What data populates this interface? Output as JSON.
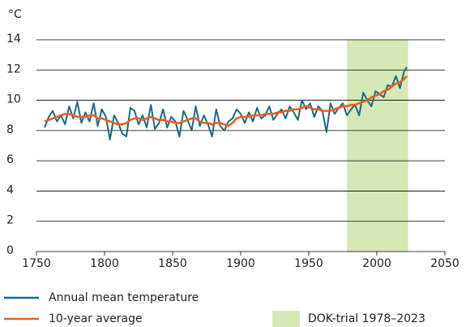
{
  "chart_data": {
    "type": "line",
    "y_unit": "°C",
    "x": [
      1756,
      1759,
      1762,
      1765,
      1768,
      1771,
      1774,
      1777,
      1780,
      1783,
      1786,
      1789,
      1792,
      1795,
      1798,
      1801,
      1804,
      1807,
      1810,
      1813,
      1816,
      1819,
      1822,
      1825,
      1828,
      1831,
      1834,
      1837,
      1840,
      1843,
      1846,
      1849,
      1852,
      1855,
      1858,
      1861,
      1864,
      1867,
      1870,
      1873,
      1876,
      1879,
      1882,
      1885,
      1888,
      1891,
      1894,
      1897,
      1900,
      1903,
      1906,
      1909,
      1912,
      1915,
      1918,
      1921,
      1924,
      1927,
      1930,
      1933,
      1936,
      1939,
      1942,
      1945,
      1948,
      1951,
      1954,
      1957,
      1960,
      1963,
      1966,
      1969,
      1972,
      1975,
      1978,
      1981,
      1984,
      1987,
      1990,
      1993,
      1996,
      1999,
      2002,
      2005,
      2008,
      2011,
      2014,
      2017,
      2020,
      2022
    ],
    "series": [
      {
        "name": "Annual mean temperature",
        "color": "#1a6a8a",
        "values": [
          8.2,
          8.9,
          9.3,
          8.6,
          9.0,
          8.4,
          9.6,
          8.8,
          9.9,
          8.5,
          9.2,
          8.6,
          9.8,
          8.3,
          9.4,
          8.9,
          7.4,
          9.0,
          8.5,
          7.8,
          7.6,
          9.5,
          9.3,
          8.4,
          9.0,
          8.2,
          9.7,
          8.1,
          8.5,
          9.4,
          8.2,
          8.9,
          8.6,
          7.6,
          9.3,
          8.7,
          8.0,
          9.6,
          8.3,
          9.0,
          8.4,
          7.6,
          9.4,
          8.3,
          8.0,
          8.6,
          8.8,
          9.4,
          9.1,
          8.5,
          9.2,
          8.6,
          9.5,
          8.8,
          9.0,
          9.6,
          8.7,
          9.1,
          9.4,
          8.8,
          9.6,
          9.2,
          8.7,
          10.0,
          9.4,
          9.8,
          8.9,
          9.6,
          9.3,
          7.9,
          9.8,
          9.1,
          9.5,
          9.8,
          9.0,
          9.4,
          9.7,
          9.0,
          10.5,
          10.0,
          9.6,
          10.6,
          10.4,
          10.2,
          11.0,
          10.9,
          11.6,
          10.8,
          11.9,
          12.2
        ]
      },
      {
        "name": "10-year average",
        "color": "#e8601c",
        "values": [
          8.6,
          8.7,
          8.8,
          8.9,
          9.0,
          9.1,
          9.1,
          9.0,
          8.9,
          8.9,
          8.9,
          9.0,
          9.0,
          8.8,
          8.8,
          8.7,
          8.6,
          8.5,
          8.4,
          8.4,
          8.5,
          8.7,
          8.8,
          8.8,
          8.7,
          8.8,
          8.9,
          8.8,
          8.7,
          8.7,
          8.6,
          8.6,
          8.5,
          8.5,
          8.6,
          8.7,
          8.8,
          8.8,
          8.6,
          8.5,
          8.5,
          8.4,
          8.5,
          8.5,
          8.4,
          8.3,
          8.5,
          8.8,
          8.9,
          8.9,
          8.9,
          9.0,
          9.0,
          9.0,
          9.1,
          9.1,
          9.1,
          9.2,
          9.2,
          9.3,
          9.3,
          9.4,
          9.4,
          9.5,
          9.6,
          9.5,
          9.4,
          9.4,
          9.3,
          9.3,
          9.3,
          9.4,
          9.5,
          9.6,
          9.6,
          9.7,
          9.7,
          9.8,
          9.9,
          10.0,
          10.2,
          10.3,
          10.4,
          10.6,
          10.7,
          10.9,
          11.1,
          11.2,
          11.4,
          11.6
        ]
      }
    ],
    "shaded_region": {
      "x": [
        1978,
        2023
      ],
      "label": "DOK-trial 1978–2023",
      "color": "#d6e8b8"
    },
    "xlim": [
      1750,
      2050
    ],
    "xticks": [
      1750,
      1800,
      1850,
      1900,
      1950,
      2000,
      2050
    ],
    "ylim": [
      0,
      14
    ],
    "yticks": [
      0,
      2,
      4,
      6,
      8,
      10,
      12,
      14
    ],
    "grid": true
  }
}
